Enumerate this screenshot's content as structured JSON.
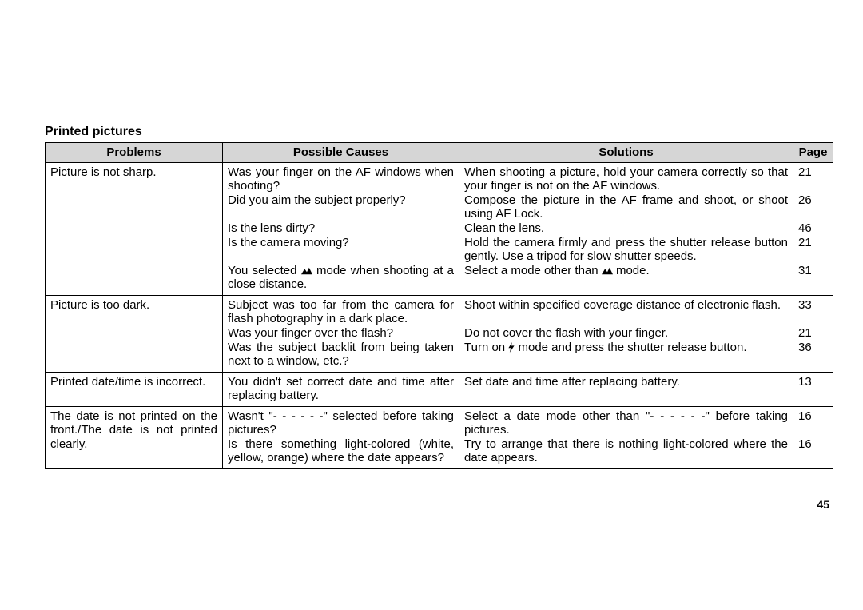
{
  "section_title": "Printed pictures",
  "page_number": "45",
  "columns": {
    "problems": "Problems",
    "causes": "Possible Causes",
    "solutions": "Solutions",
    "page": "Page"
  },
  "rows": [
    {
      "problem": "Picture is not sharp.",
      "items": [
        {
          "cause": "Was your finger on the AF windows when shooting?",
          "solution": "When shooting a picture, hold your camera correctly so that your finger is not on the AF windows.",
          "page": "21"
        },
        {
          "cause": "Did you aim the subject properly?",
          "solution": "Compose the picture in the AF frame and shoot, or shoot using AF Lock.",
          "page": "26"
        },
        {
          "cause": "Is the lens dirty?",
          "solution": "Clean the lens.",
          "page": "46"
        },
        {
          "cause": "Is the camera moving?",
          "solution": "Hold the camera firmly and press the shutter release button gently. Use a tripod for slow shutter speeds.",
          "page": "21"
        },
        {
          "cause_pre": "You selected ",
          "cause_post": " mode when shooting at a close distance.",
          "cause_icon": "mountain",
          "solution_pre": "Select a mode other than ",
          "solution_post": " mode.",
          "solution_icon": "mountain",
          "page": "31"
        }
      ]
    },
    {
      "problem": "Picture is too dark.",
      "items": [
        {
          "cause": "Subject was too far from the camera for flash photography in a dark place.",
          "solution": "Shoot within specified coverage distance of electronic flash.",
          "page": "33"
        },
        {
          "cause": "Was your finger over the flash?",
          "solution": "Do not cover the flash with your finger.",
          "page": "21"
        },
        {
          "cause": "Was the subject backlit from being taken next to a window, etc.?",
          "solution_pre": "Turn on ",
          "solution_post": " mode and press the shutter release button.",
          "solution_icon": "flash",
          "page": "36"
        }
      ]
    },
    {
      "problem": "Printed date/time is incorrect.",
      "items": [
        {
          "cause": "You didn't set correct date and time after replacing battery.",
          "solution": "Set date and time after replacing battery.",
          "page": "13"
        }
      ]
    },
    {
      "problem": "The date is not printed on the front./The date is not printed clearly.",
      "items": [
        {
          "cause": "Wasn't  \"- - - - - -\" selected before taking pictures?",
          "solution": "Select a date mode other than  \"- - - - - -\" before taking pictures.",
          "page": "16"
        },
        {
          "cause": "Is there something light-colored (white, yellow, orange) where the date appears?",
          "solution": "Try to arrange that there is nothing light-colored where the date appears.",
          "page": "16"
        }
      ]
    }
  ]
}
